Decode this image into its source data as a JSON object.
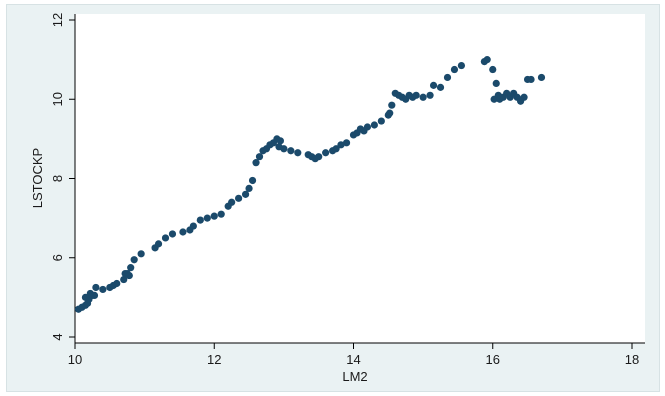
{
  "chart_data": {
    "type": "scatter",
    "title": "",
    "xlabel": "LM2",
    "ylabel": "LSTOCKP",
    "xlim": [
      10,
      18
    ],
    "ylim": [
      4,
      12
    ],
    "xticks": [
      "10",
      "12",
      "14",
      "16",
      "18"
    ],
    "yticks": [
      "4",
      "6",
      "8",
      "10",
      "12"
    ],
    "grid": false,
    "legend": "none",
    "colors": {
      "marker": "#1b4a6b",
      "plot_bg": "#ffffff",
      "outer_bg": "#eaf2f3"
    },
    "series": [
      {
        "x": [
          10.05,
          10.1,
          10.15,
          10.18,
          10.2,
          10.22,
          10.15,
          10.25,
          10.3,
          10.28,
          10.4,
          10.5,
          10.55,
          10.6,
          10.7,
          10.75,
          10.8,
          10.72,
          10.78,
          10.85,
          10.95,
          11.15,
          11.2,
          11.3,
          11.4,
          11.55,
          11.65,
          11.7,
          11.8,
          11.9,
          12.0,
          12.1,
          12.2,
          12.25,
          12.35,
          12.45,
          12.5,
          12.55,
          12.6,
          12.65,
          12.7,
          12.75,
          12.8,
          12.85,
          12.9,
          12.95,
          12.93,
          13.0,
          13.1,
          13.2,
          13.35,
          13.4,
          13.45,
          13.5,
          13.6,
          13.7,
          13.75,
          13.82,
          13.9,
          14.0,
          14.05,
          14.1,
          14.15,
          14.2,
          14.3,
          14.4,
          14.5,
          14.52,
          14.55,
          14.6,
          14.65,
          14.7,
          14.75,
          14.8,
          14.85,
          14.9,
          15.0,
          15.1,
          15.15,
          15.25,
          15.35,
          15.45,
          15.55,
          15.88,
          15.92,
          16.0,
          16.02,
          16.05,
          16.08,
          16.1,
          16.15,
          16.2,
          16.25,
          16.3,
          16.35,
          16.4,
          16.45,
          16.5,
          16.55,
          16.7
        ],
        "y": [
          4.7,
          4.75,
          4.8,
          4.85,
          4.95,
          5.1,
          5.0,
          5.05,
          5.25,
          5.05,
          5.2,
          5.25,
          5.3,
          5.35,
          5.45,
          5.6,
          5.75,
          5.6,
          5.55,
          5.95,
          6.1,
          6.25,
          6.35,
          6.5,
          6.6,
          6.65,
          6.7,
          6.8,
          6.95,
          7.0,
          7.05,
          7.1,
          7.3,
          7.4,
          7.5,
          7.6,
          7.75,
          7.95,
          8.4,
          8.55,
          8.7,
          8.75,
          8.85,
          8.9,
          9.0,
          8.95,
          8.8,
          8.75,
          8.7,
          8.65,
          8.6,
          8.55,
          8.5,
          8.55,
          8.65,
          8.7,
          8.75,
          8.85,
          8.9,
          9.1,
          9.15,
          9.25,
          9.2,
          9.3,
          9.35,
          9.45,
          9.6,
          9.65,
          9.85,
          10.15,
          10.1,
          10.05,
          10.0,
          10.1,
          10.05,
          10.1,
          10.05,
          10.1,
          10.35,
          10.3,
          10.55,
          10.75,
          10.85,
          10.95,
          11.0,
          10.75,
          10.0,
          10.4,
          10.1,
          10.0,
          10.05,
          10.15,
          10.05,
          10.15,
          10.05,
          9.95,
          10.05,
          10.5,
          10.5,
          10.55
        ]
      }
    ]
  }
}
